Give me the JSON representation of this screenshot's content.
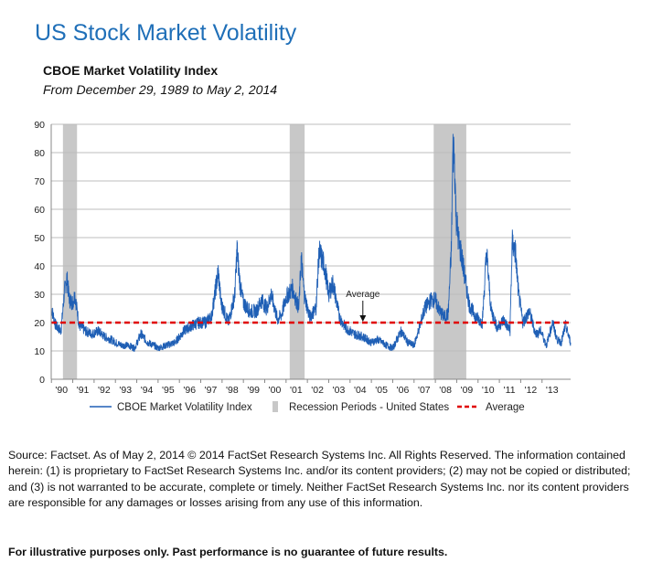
{
  "title": "US Stock Market Volatility",
  "subtitle": "CBOE Market Volatility  Index",
  "date_range": "From December  29, 1989 to May 2, 2014",
  "source": "Source: Factset. As of May 2, 2014  © 2014  FactSet Research Systems Inc. All Rights Reserved. The information contained herein: (1) is proprietary to FactSet Research Systems Inc. and/or its content providers; (2) may not be copied or distributed; and (3) is not warranted to be accurate, complete or timely. Neither FactSet Research Systems Inc. nor its content providers are responsible for any damages or losses arising from any use of this information.",
  "disclaimer": "For illustrative purposes only. Past performance is no guarantee of future results.",
  "chart_data": {
    "type": "line",
    "ylim": [
      0,
      90
    ],
    "xlim": [
      1989.99,
      2014.34
    ],
    "y_ticks": [
      0,
      10,
      20,
      30,
      40,
      50,
      60,
      70,
      80,
      90
    ],
    "x_ticks": [
      {
        "label": "'90",
        "x": 1990
      },
      {
        "label": "'91",
        "x": 1991
      },
      {
        "label": "'92",
        "x": 1992
      },
      {
        "label": "'93",
        "x": 1993
      },
      {
        "label": "'94",
        "x": 1994
      },
      {
        "label": "'95",
        "x": 1995
      },
      {
        "label": "'96",
        "x": 1996
      },
      {
        "label": "'97",
        "x": 1997
      },
      {
        "label": "'98",
        "x": 1998
      },
      {
        "label": "'99",
        "x": 1999
      },
      {
        "label": "'00",
        "x": 2000
      },
      {
        "label": "'01",
        "x": 2001
      },
      {
        "label": "'02",
        "x": 2002
      },
      {
        "label": "'03",
        "x": 2003
      },
      {
        "label": "'04",
        "x": 2004
      },
      {
        "label": "'05",
        "x": 2005
      },
      {
        "label": "'06",
        "x": 2006
      },
      {
        "label": "'07",
        "x": 2007
      },
      {
        "label": "'08",
        "x": 2008
      },
      {
        "label": "'09",
        "x": 2009
      },
      {
        "label": "'10",
        "x": 2010
      },
      {
        "label": "'11",
        "x": 2011
      },
      {
        "label": "'12",
        "x": 2012
      },
      {
        "label": "'13",
        "x": 2013
      }
    ],
    "grid": true,
    "colors": {
      "series": "#1f5fb5",
      "recession": "#c8c8c8",
      "average": "#e00000",
      "grid": "#bdbdbd"
    },
    "series": [
      {
        "name": "CBOE Market Volatility Index",
        "points": [
          [
            1990.0,
            25
          ],
          [
            1990.2,
            19
          ],
          [
            1990.45,
            17
          ],
          [
            1990.6,
            30
          ],
          [
            1990.72,
            36
          ],
          [
            1990.85,
            28
          ],
          [
            1991.0,
            27
          ],
          [
            1991.1,
            30
          ],
          [
            1991.3,
            19
          ],
          [
            1991.6,
            17
          ],
          [
            1991.9,
            16
          ],
          [
            1992.2,
            17
          ],
          [
            1992.5,
            15
          ],
          [
            1992.8,
            14
          ],
          [
            1993.0,
            13
          ],
          [
            1993.3,
            12
          ],
          [
            1993.6,
            12
          ],
          [
            1993.9,
            11
          ],
          [
            1994.2,
            16
          ],
          [
            1994.5,
            13
          ],
          [
            1994.8,
            12
          ],
          [
            1995.0,
            11
          ],
          [
            1995.4,
            12
          ],
          [
            1995.8,
            13
          ],
          [
            1996.2,
            17
          ],
          [
            1996.6,
            19
          ],
          [
            1996.9,
            20
          ],
          [
            1997.2,
            20
          ],
          [
            1997.5,
            22
          ],
          [
            1997.82,
            38
          ],
          [
            1997.95,
            27
          ],
          [
            1998.3,
            20
          ],
          [
            1998.6,
            30
          ],
          [
            1998.7,
            46
          ],
          [
            1998.85,
            33
          ],
          [
            1999.0,
            27
          ],
          [
            1999.3,
            24
          ],
          [
            1999.6,
            24
          ],
          [
            1999.85,
            28
          ],
          [
            2000.1,
            25
          ],
          [
            2000.3,
            30
          ],
          [
            2000.6,
            21
          ],
          [
            2000.8,
            23
          ],
          [
            2001.0,
            29
          ],
          [
            2001.3,
            32
          ],
          [
            2001.6,
            25
          ],
          [
            2001.71,
            43
          ],
          [
            2001.85,
            30
          ],
          [
            2002.1,
            22
          ],
          [
            2002.4,
            25
          ],
          [
            2002.55,
            45
          ],
          [
            2002.8,
            40
          ],
          [
            2003.0,
            30
          ],
          [
            2003.2,
            34
          ],
          [
            2003.5,
            22
          ],
          [
            2003.8,
            18
          ],
          [
            2004.2,
            16
          ],
          [
            2004.6,
            15
          ],
          [
            2005.0,
            13
          ],
          [
            2005.3,
            14
          ],
          [
            2005.7,
            12
          ],
          [
            2006.0,
            11
          ],
          [
            2006.4,
            17
          ],
          [
            2006.7,
            13
          ],
          [
            2007.0,
            12
          ],
          [
            2007.2,
            17
          ],
          [
            2007.5,
            25
          ],
          [
            2007.8,
            28
          ],
          [
            2008.0,
            28
          ],
          [
            2008.2,
            24
          ],
          [
            2008.4,
            22
          ],
          [
            2008.6,
            23
          ],
          [
            2008.75,
            46
          ],
          [
            2008.82,
            80
          ],
          [
            2008.88,
            81
          ],
          [
            2008.97,
            58
          ],
          [
            2009.1,
            48
          ],
          [
            2009.2,
            45
          ],
          [
            2009.4,
            35
          ],
          [
            2009.6,
            26
          ],
          [
            2009.9,
            22
          ],
          [
            2010.2,
            20
          ],
          [
            2010.4,
            45
          ],
          [
            2010.6,
            25
          ],
          [
            2010.9,
            18
          ],
          [
            2011.2,
            21
          ],
          [
            2011.5,
            17
          ],
          [
            2011.6,
            48
          ],
          [
            2011.75,
            45
          ],
          [
            2011.9,
            30
          ],
          [
            2012.1,
            20
          ],
          [
            2012.4,
            24
          ],
          [
            2012.7,
            16
          ],
          [
            2012.95,
            17
          ],
          [
            2013.2,
            12
          ],
          [
            2013.5,
            20
          ],
          [
            2013.7,
            14
          ],
          [
            2013.9,
            13
          ],
          [
            2014.1,
            19
          ],
          [
            2014.34,
            13
          ]
        ]
      }
    ],
    "recessions": [
      [
        1990.54,
        1991.2
      ],
      [
        2001.17,
        2001.87
      ],
      [
        2007.92,
        2009.45
      ]
    ],
    "average": {
      "label": "Average",
      "value": 20
    },
    "legend": [
      {
        "label": "CBOE Market Volatility Index",
        "kind": "line"
      },
      {
        "label": "Recession Periods - United States",
        "kind": "box"
      },
      {
        "label": "Average",
        "kind": "dashed"
      }
    ]
  }
}
